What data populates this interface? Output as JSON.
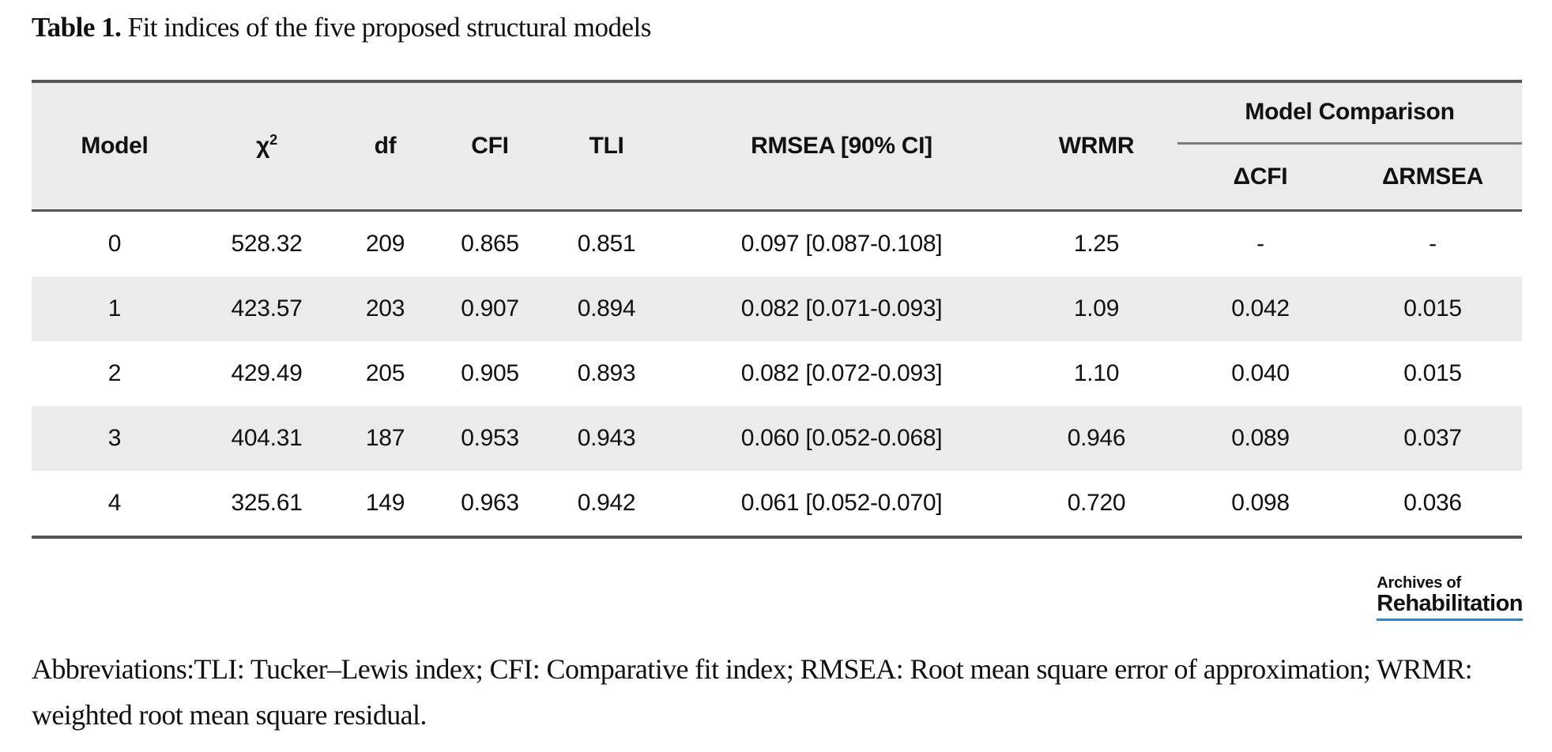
{
  "page": {
    "title_prefix": "Table 1.",
    "title_rest": " Fit indices of the five proposed structural models"
  },
  "table": {
    "header": {
      "model": "Model",
      "chi": "χ",
      "chi_sup": "2",
      "df": "df",
      "cfi": "CFI",
      "tli": "TLI",
      "rmsea": "RMSEA [90% CI]",
      "wrmr": "WRMR",
      "comparison": "Model Comparison",
      "dcfi": "ΔCFI",
      "drmsea": "ΔRMSEA"
    },
    "rows": [
      {
        "model": "0",
        "chi2": "528.32",
        "df": "209",
        "cfi": "0.865",
        "tli": "0.851",
        "rmsea": "0.097 [0.087-0.108]",
        "wrmr": "1.25",
        "dcfi": "-",
        "drmsea": "-"
      },
      {
        "model": "1",
        "chi2": "423.57",
        "df": "203",
        "cfi": "0.907",
        "tli": "0.894",
        "rmsea": "0.082 [0.071-0.093]",
        "wrmr": "1.09",
        "dcfi": "0.042",
        "drmsea": "0.015"
      },
      {
        "model": "2",
        "chi2": "429.49",
        "df": "205",
        "cfi": "0.905",
        "tli": "0.893",
        "rmsea": "0.082 [0.072-0.093]",
        "wrmr": "1.10",
        "dcfi": "0.040",
        "drmsea": "0.015"
      },
      {
        "model": "3",
        "chi2": "404.31",
        "df": "187",
        "cfi": "0.953",
        "tli": "0.943",
        "rmsea": "0.060 [0.052-0.068]",
        "wrmr": "0.946",
        "dcfi": "0.089",
        "drmsea": "0.037"
      },
      {
        "model": "4",
        "chi2": "325.61",
        "df": "149",
        "cfi": "0.963",
        "tli": "0.942",
        "rmsea": "0.061 [0.052-0.070]",
        "wrmr": "0.720",
        "dcfi": "0.098",
        "drmsea": "0.036"
      }
    ]
  },
  "logo": {
    "line1": "Archives of",
    "line2": "Rehabilitation"
  },
  "footnote": {
    "line1": "Abbreviations:TLI: Tucker–Lewis index; CFI: Comparative fit index; RMSEA: Root mean square error of approximation; WRMR:",
    "line2": "weighted root mean square residual."
  },
  "colors": {
    "row_stripe": "#ebebeb",
    "border_dark": "#555555",
    "spanner_line": "#7e7e7e",
    "text": "#111111",
    "logo_underline": "#2f86c0"
  }
}
